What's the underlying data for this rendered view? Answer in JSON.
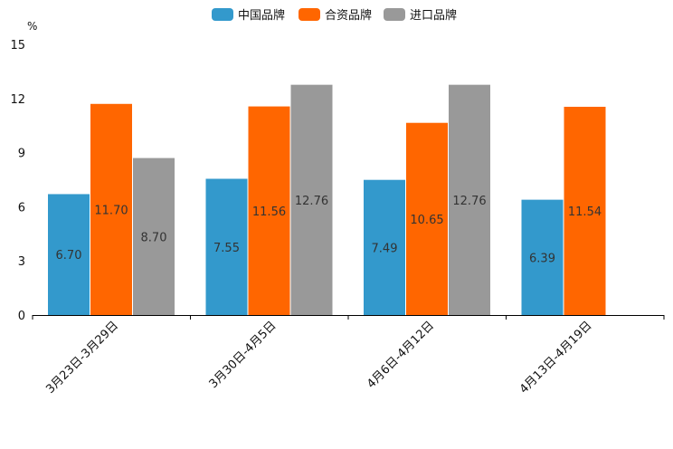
{
  "chart_data": {
    "type": "bar",
    "unit_label": "%",
    "categories": [
      "3月23日-3月29日",
      "3月30日-4月5日",
      "4月6日-4月12日",
      "4月13日-4月19日"
    ],
    "series": [
      {
        "name": "中国品牌",
        "color": "#3399cc",
        "values": [
          6.7,
          7.55,
          7.49,
          6.39
        ]
      },
      {
        "name": "合资品牌",
        "color": "#ff6600",
        "values": [
          11.7,
          11.56,
          10.65,
          11.54
        ]
      },
      {
        "name": "进口品牌",
        "color": "#999999",
        "values": [
          8.7,
          12.76,
          12.76,
          null
        ]
      }
    ],
    "value_labels": [
      [
        "6.70",
        "7.55",
        "7.49",
        "6.39"
      ],
      [
        "11.70",
        "11.56",
        "10.65",
        "11.54"
      ],
      [
        "8.70",
        "12.76",
        "12.76",
        null
      ]
    ],
    "y_ticks": [
      0,
      3,
      6,
      9,
      12,
      15
    ],
    "ylim": [
      0,
      15
    ],
    "grid": false,
    "legend_position": "top-center",
    "title": "",
    "xlabel": "",
    "ylabel": "%"
  }
}
